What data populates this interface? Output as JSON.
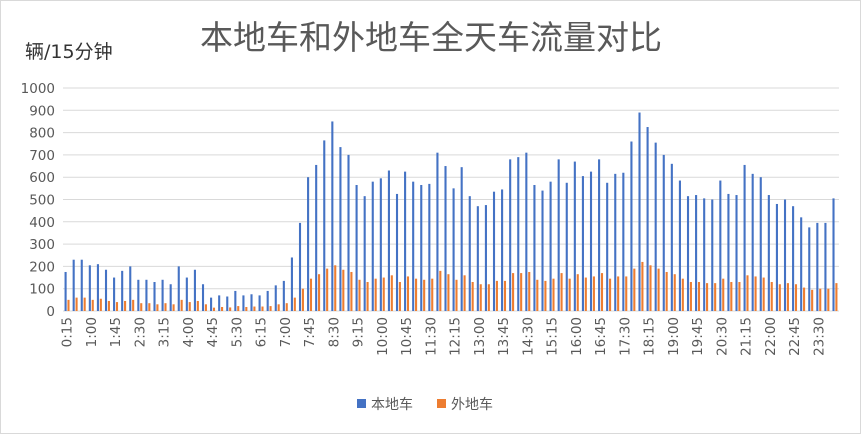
{
  "chart_data": {
    "type": "bar",
    "title": "本地车和外地车全天车流量对比",
    "ylabel": "辆/15分钟",
    "xlabel": "",
    "ylim": [
      0,
      1000
    ],
    "y_ticks": [
      0,
      100,
      200,
      300,
      400,
      500,
      600,
      700,
      800,
      900,
      1000
    ],
    "grid": true,
    "legend_position": "bottom-center",
    "x_tick_labels": [
      "0:15",
      "1:00",
      "1:45",
      "2:30",
      "3:15",
      "4:00",
      "4:45",
      "5:30",
      "6:15",
      "7:00",
      "7:45",
      "8:30",
      "9:15",
      "10:00",
      "10:45",
      "11:30",
      "12:15",
      "13:00",
      "13:45",
      "14:30",
      "15:15",
      "16:00",
      "16:45",
      "17:30",
      "18:15",
      "19:00",
      "19:45",
      "20:30",
      "21:15",
      "22:00",
      "22:45",
      "23:30"
    ],
    "series": [
      {
        "name": "本地车",
        "color": "#4472c4",
        "values": [
          175,
          230,
          230,
          205,
          210,
          185,
          150,
          180,
          200,
          140,
          140,
          130,
          140,
          120,
          200,
          150,
          185,
          120,
          60,
          70,
          65,
          90,
          70,
          75,
          70,
          90,
          115,
          135,
          240,
          395,
          600,
          655,
          765,
          850,
          735,
          700,
          565,
          515,
          580,
          595,
          630,
          525,
          625,
          580,
          565,
          570,
          710,
          650,
          550,
          645,
          515,
          470,
          475,
          535,
          545,
          680,
          690,
          710,
          565,
          540,
          580,
          680,
          575,
          670,
          605,
          625,
          680,
          575,
          615,
          620,
          760,
          890,
          825,
          755,
          700,
          660,
          585,
          515,
          520,
          505,
          500,
          585,
          525,
          520,
          655,
          615,
          600,
          520,
          480,
          500,
          470,
          420,
          375,
          395,
          395,
          505
        ]
      },
      {
        "name": "外地车",
        "color": "#ed7d31",
        "values": [
          50,
          60,
          60,
          50,
          55,
          45,
          40,
          45,
          50,
          35,
          35,
          30,
          35,
          30,
          50,
          40,
          45,
          30,
          15,
          18,
          16,
          22,
          18,
          20,
          20,
          22,
          30,
          35,
          60,
          100,
          145,
          165,
          190,
          205,
          185,
          175,
          140,
          130,
          145,
          150,
          160,
          130,
          155,
          145,
          140,
          145,
          180,
          165,
          140,
          160,
          130,
          120,
          120,
          135,
          135,
          170,
          170,
          175,
          140,
          135,
          145,
          170,
          145,
          165,
          150,
          155,
          170,
          145,
          155,
          155,
          190,
          220,
          205,
          190,
          175,
          165,
          145,
          130,
          130,
          125,
          125,
          145,
          130,
          130,
          160,
          155,
          150,
          130,
          120,
          125,
          120,
          105,
          95,
          100,
          100,
          125
        ]
      }
    ]
  }
}
